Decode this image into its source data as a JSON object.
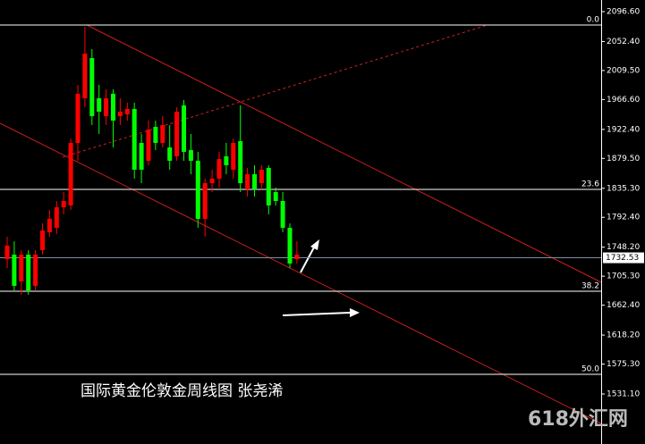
{
  "chart_data": {
    "type": "candlestick",
    "title": "国际黄金伦敦金周线图 张尧浠",
    "watermark": "618外汇网",
    "up_color": "#ff0000",
    "down_color": "#00ff00",
    "open": [
      1730.6,
      1737.2,
      1697.6,
      1737.2,
      1691.0,
      1743.8,
      1770.3,
      1776.9,
      1807.3,
      1809.9,
      1902.4,
      1968.5,
      2027.9,
      1968.5,
      1942.0,
      1975.1,
      1942.0,
      1944.7,
      1952.6,
      1902.4,
      1876.0,
      1926.2,
      1902.4,
      1895.8,
      1882.6,
      1957.9,
      1891.8,
      1876.0,
      1790.1,
      1842.9,
      1849.5,
      1882.6,
      1862.8,
      1905.0,
      1833.7,
      1856.1,
      1842.9,
      1865.4,
      1829.7,
      1816.5,
      1776.9,
      1730.6
    ],
    "high": [
      1763.7,
      1757.0,
      1743.8,
      1743.8,
      1743.8,
      1783.5,
      1803.3,
      1816.5,
      1829.7,
      1909.0,
      1988.3,
      2074.2,
      2041.1,
      1988.3,
      1981.7,
      1981.7,
      1968.5,
      1961.9,
      1961.9,
      1915.6,
      1935.4,
      1935.4,
      1942.0,
      1928.8,
      1955.2,
      1965.8,
      1915.6,
      1889.2,
      1849.5,
      1862.8,
      1889.2,
      1902.4,
      1909.0,
      1957.9,
      1865.4,
      1869.4,
      1869.4,
      1869.4,
      1836.3,
      1829.7,
      1783.5,
      1757.0
    ],
    "low": [
      1717.4,
      1684.4,
      1677.8,
      1677.8,
      1684.4,
      1737.2,
      1763.7,
      1767.6,
      1796.7,
      1803.3,
      1876.0,
      1955.2,
      1928.8,
      1915.6,
      1928.8,
      1895.8,
      1928.8,
      1935.4,
      1849.5,
      1842.9,
      1869.4,
      1891.8,
      1895.8,
      1862.8,
      1876.0,
      1876.0,
      1856.1,
      1776.9,
      1763.7,
      1829.7,
      1836.3,
      1856.1,
      1849.5,
      1829.7,
      1823.1,
      1823.1,
      1833.7,
      1796.7,
      1809.9,
      1770.3,
      1717.4,
      1724.0
    ],
    "close": [
      1750.4,
      1691.0,
      1737.2,
      1684.4,
      1737.2,
      1772.9,
      1790.1,
      1807.3,
      1816.5,
      1902.4,
      1975.1,
      2034.5,
      1942.0,
      1948.6,
      1968.5,
      1935.4,
      1948.6,
      1952.6,
      1862.8,
      1862.8,
      1922.2,
      1902.4,
      1928.8,
      1876.0,
      1948.6,
      1889.2,
      1876.0,
      1790.1,
      1842.9,
      1849.5,
      1878.6,
      1869.4,
      1902.4,
      1842.9,
      1856.1,
      1833.7,
      1862.8,
      1809.9,
      1816.5,
      1776.9,
      1724.0,
      1737.2
    ],
    "ylim": [
      1457.1,
      2113.8
    ],
    "yticks": [
      {
        "value": 2096.6,
        "label": "2096.60"
      },
      {
        "value": 2052.4,
        "label": "2052.40"
      },
      {
        "value": 2009.5,
        "label": "2009.50"
      },
      {
        "value": 1966.6,
        "label": "1966.60"
      },
      {
        "value": 1922.4,
        "label": "1922.40"
      },
      {
        "value": 1879.5,
        "label": "1879.50"
      },
      {
        "value": 1835.3,
        "label": "1835.30"
      },
      {
        "value": 1792.4,
        "label": "1792.40"
      },
      {
        "value": 1748.2,
        "label": "1748.20"
      },
      {
        "value": 1705.3,
        "label": "1705.30"
      },
      {
        "value": 1662.4,
        "label": "1662.40"
      },
      {
        "value": 1618.2,
        "label": "1618.20"
      },
      {
        "value": 1575.3,
        "label": "1575.30"
      },
      {
        "value": 1531.1,
        "label": "1531.10"
      }
    ],
    "fib_levels": [
      {
        "label": "0.0",
        "price": 2076.8
      },
      {
        "label": "23.6",
        "price": 1833.7
      },
      {
        "label": "38.2",
        "price": 1683.0
      },
      {
        "label": "50.0",
        "price": 1560.2
      }
    ],
    "last_price": 1732.53
  }
}
